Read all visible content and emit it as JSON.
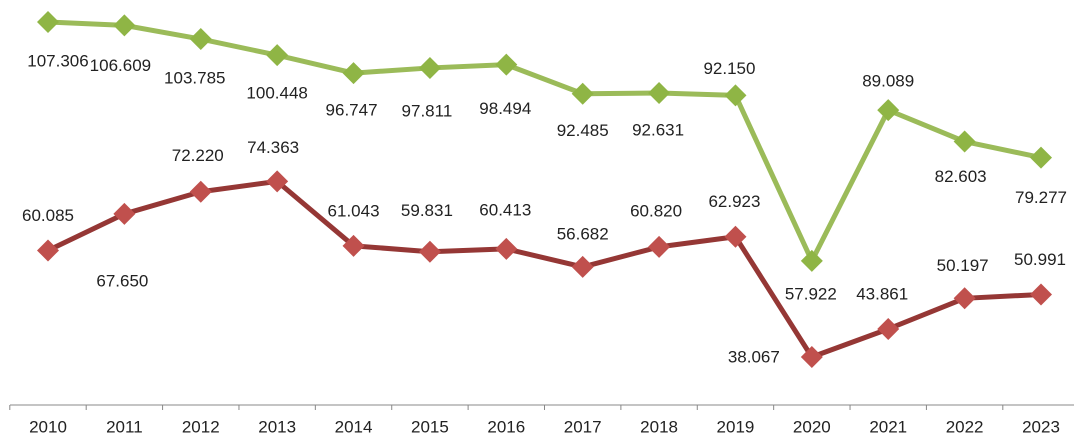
{
  "chart_data": {
    "type": "line",
    "categories": [
      "2010",
      "2011",
      "2012",
      "2013",
      "2014",
      "2015",
      "2016",
      "2017",
      "2018",
      "2019",
      "2020",
      "2021",
      "2022",
      "2023"
    ],
    "series": [
      {
        "color": "#9bbb59",
        "marker_color": "#8fb545",
        "values": [
          107.306,
          106.609,
          103.785,
          100.448,
          96.747,
          97.811,
          98.494,
          92.485,
          92.631,
          92.15,
          57.922,
          89.089,
          82.603,
          79.277
        ],
        "value_labels": [
          "107.306",
          "106.609",
          "103.785",
          "100.448",
          "96.747",
          "97.811",
          "98.494",
          "92.485",
          "92.631",
          "92.150",
          "57.922",
          "89.089",
          "82.603",
          "79.277"
        ]
      },
      {
        "color": "#953735",
        "marker_color": "#c0504d",
        "values": [
          60.085,
          67.65,
          72.22,
          74.363,
          61.043,
          59.831,
          60.413,
          56.682,
          60.82,
          62.923,
          38.067,
          43.861,
          50.197,
          50.991
        ],
        "value_labels": [
          "60.085",
          "67.650",
          "72.220",
          "74.363",
          "61.043",
          "59.831",
          "60.413",
          "56.682",
          "60.820",
          "62.923",
          "38.067",
          "43.861",
          "50.197",
          "50.991"
        ]
      }
    ]
  }
}
